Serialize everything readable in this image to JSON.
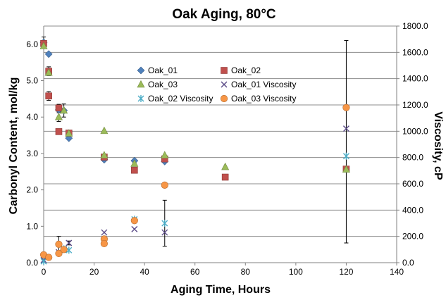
{
  "chart_data": {
    "type": "scatter",
    "title": "Oak Aging, 80°C",
    "xlabel": "Aging Time, Hours",
    "ylabel": "Carbonyl Content, mol/kg",
    "y2label": "Viscosity, cP",
    "xlim": [
      0,
      140
    ],
    "ylim": [
      0,
      6.5
    ],
    "y2lim": [
      0,
      1800
    ],
    "xticks": [
      0,
      20,
      40,
      60,
      80,
      100,
      120,
      140
    ],
    "xtick_labels": [
      "0",
      "20",
      "40",
      "60",
      "80",
      "100",
      "120",
      "140"
    ],
    "yticks": [
      0,
      1,
      2,
      3,
      4,
      5,
      6
    ],
    "ytick_labels": [
      "0.0",
      "1.0",
      "2.0",
      "3.0",
      "4.0",
      "5.0",
      "6.0"
    ],
    "y2ticks": [
      0,
      200,
      400,
      600,
      800,
      1000,
      1200,
      1400,
      1600,
      1800
    ],
    "y2tick_labels": [
      "0.0",
      "200.0",
      "400.0",
      "600.0",
      "800.0",
      "1000.0",
      "1200.0",
      "1400.0",
      "1600.0",
      "1800.0"
    ],
    "grid": "horizontal",
    "legend_position": "center",
    "series": [
      {
        "name": "Oak_01",
        "axis": "left",
        "marker": "diamond",
        "color": "#4F81BD",
        "x": [
          0,
          2,
          6,
          8,
          10,
          24,
          36,
          48
        ],
        "y": [
          6.05,
          5.73,
          4.2,
          4.18,
          3.42,
          2.83,
          2.8,
          2.78
        ],
        "err": [
          0.15,
          0,
          0,
          0,
          0,
          0,
          0,
          0
        ]
      },
      {
        "name": "Oak_02",
        "axis": "left",
        "marker": "square",
        "color": "#C0504D",
        "x": [
          0,
          2,
          2,
          6,
          6,
          10,
          24,
          36,
          48,
          72,
          120
        ],
        "y": [
          6.02,
          5.26,
          4.58,
          4.25,
          3.6,
          3.56,
          2.9,
          2.54,
          2.85,
          2.35,
          2.57
        ],
        "err": [
          0,
          0.12,
          0.12,
          0.1,
          0,
          0,
          0,
          0,
          0,
          0,
          0
        ]
      },
      {
        "name": "Oak_03",
        "axis": "left",
        "marker": "triangle",
        "color": "#9BBB59",
        "x": [
          0,
          2,
          6,
          8,
          10,
          24,
          24,
          36,
          48,
          72,
          120
        ],
        "y": [
          5.95,
          5.22,
          4.0,
          4.18,
          3.55,
          3.62,
          2.95,
          2.72,
          2.95,
          2.63,
          2.56
        ],
        "err": [
          0,
          0,
          0.12,
          0.18,
          0,
          0,
          0,
          0,
          0,
          0,
          0
        ]
      },
      {
        "name": "Oak_01 Viscosity",
        "axis": "right",
        "marker": "x",
        "color": "#5A4A87",
        "x": [
          0,
          6,
          8,
          10,
          24,
          36,
          48,
          120
        ],
        "y": [
          20,
          80,
          100,
          150,
          230,
          255,
          230,
          1020
        ],
        "err": [
          0,
          0,
          0,
          15,
          0,
          0,
          0,
          0
        ]
      },
      {
        "name": "Oak_02 Viscosity",
        "axis": "right",
        "marker": "star",
        "color": "#4BACC6",
        "x": [
          0,
          8,
          10,
          36,
          48,
          120
        ],
        "y": [
          10,
          105,
          95,
          330,
          300,
          810
        ],
        "err": [
          0,
          0,
          0,
          0,
          175,
          0
        ]
      },
      {
        "name": "Oak_03 Viscosity",
        "axis": "right",
        "marker": "circle",
        "color": "#F79646",
        "x": [
          0,
          2,
          6,
          6,
          8,
          24,
          24,
          36,
          48,
          120
        ],
        "y": [
          60,
          40,
          140,
          70,
          100,
          180,
          145,
          320,
          590,
          1180
        ],
        "err": [
          0,
          0,
          60,
          0,
          0,
          0,
          0,
          0,
          0,
          0
        ]
      }
    ],
    "extra_error_bars": [
      {
        "axis": "right",
        "x": 120,
        "y": 920,
        "err": 770
      }
    ]
  }
}
